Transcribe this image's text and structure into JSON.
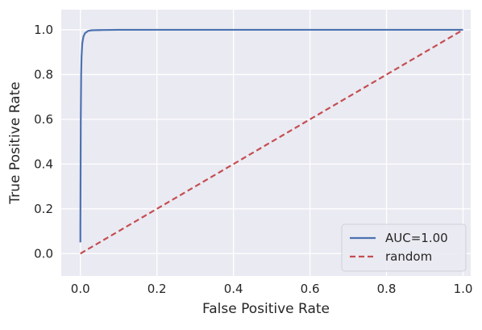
{
  "chart_data": {
    "type": "line",
    "xlabel": "False Positive Rate",
    "ylabel": "True Positive Rate",
    "xlim": [
      -0.05,
      1.02
    ],
    "ylim": [
      -0.1,
      1.09
    ],
    "xticks": [
      "0.0",
      "0.2",
      "0.4",
      "0.6",
      "0.8",
      "1.0"
    ],
    "yticks": [
      "0.0",
      "0.2",
      "0.4",
      "0.6",
      "0.8",
      "1.0"
    ],
    "grid": true,
    "legend_position": "bottom-right",
    "series": [
      {
        "name": "AUC=1.00",
        "style": "solid",
        "color": "#4c72b0",
        "x": [
          0,
          0,
          0.001,
          0.002,
          0.003,
          0.005,
          0.008,
          0.012,
          0.02,
          0.03,
          0.05,
          0.1,
          0.2,
          0.4,
          0.6,
          0.8,
          1.0
        ],
        "y": [
          0.05,
          0.12,
          0.6,
          0.8,
          0.88,
          0.94,
          0.97,
          0.985,
          0.995,
          0.998,
          0.999,
          1.0,
          1.0,
          1.0,
          1.0,
          1.0,
          1.0
        ]
      },
      {
        "name": "random",
        "style": "dashed",
        "color": "#c44e52",
        "x": [
          0,
          1
        ],
        "y": [
          0,
          1
        ]
      }
    ]
  }
}
